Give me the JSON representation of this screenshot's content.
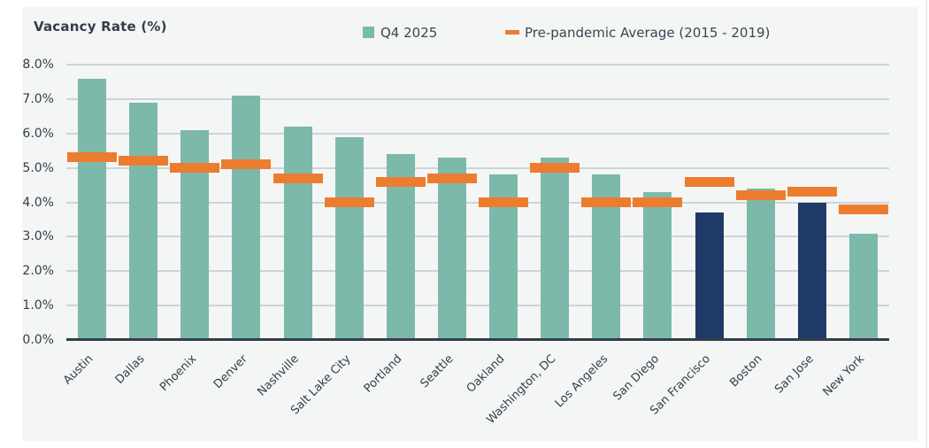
{
  "header": {
    "title": "Vacancy Rate (%)"
  },
  "legend": {
    "items": [
      {
        "label": "Q4 2025",
        "icon": "square-swatch",
        "color": "#7db9ab"
      },
      {
        "label": "Pre-pandemic Average (2015 - 2019)",
        "icon": "dash-swatch",
        "color": "#ec7d2e"
      }
    ]
  },
  "chart_data": {
    "type": "bar",
    "ylabel": "Vacancy Rate (%)",
    "categories": [
      "Austin",
      "Dallas",
      "Phoenix",
      "Denver",
      "Nashville",
      "Salt Lake City",
      "Portland",
      "Seattle",
      "Oakland",
      "Washington, DC",
      "Los Angeles",
      "San Diego",
      "San Francisco",
      "Boston",
      "San Jose",
      "New York"
    ],
    "series": [
      {
        "name": "Q4 2025",
        "type": "bar",
        "values": [
          7.6,
          6.9,
          6.1,
          7.1,
          6.2,
          5.9,
          5.4,
          5.3,
          4.8,
          5.3,
          4.8,
          4.3,
          3.7,
          4.4,
          4.0,
          3.1
        ]
      },
      {
        "name": "Pre-pandemic Average (2015 - 2019)",
        "type": "tick-marker",
        "values": [
          5.3,
          5.2,
          5.0,
          5.1,
          4.7,
          4.0,
          4.6,
          4.7,
          4.0,
          5.0,
          4.0,
          4.0,
          4.6,
          4.2,
          4.3,
          3.8
        ]
      }
    ],
    "highlighted_categories": [
      "San Francisco",
      "San Jose"
    ],
    "ylim": [
      0,
      8
    ],
    "ytick_labels": [
      "0.0%",
      "1.0%",
      "2.0%",
      "3.0%",
      "4.0%",
      "5.0%",
      "6.0%",
      "7.0%",
      "8.0%"
    ],
    "grid": true,
    "legend_position": "top-center",
    "colors": {
      "bar": "#7db9ab",
      "bar_highlight": "#1f3a67",
      "marker": "#ec7d2e",
      "panel_background": "#f4f5f5",
      "gridline": "#ccd5d8",
      "baseline": "#333e46",
      "text": "#323f4a"
    }
  }
}
